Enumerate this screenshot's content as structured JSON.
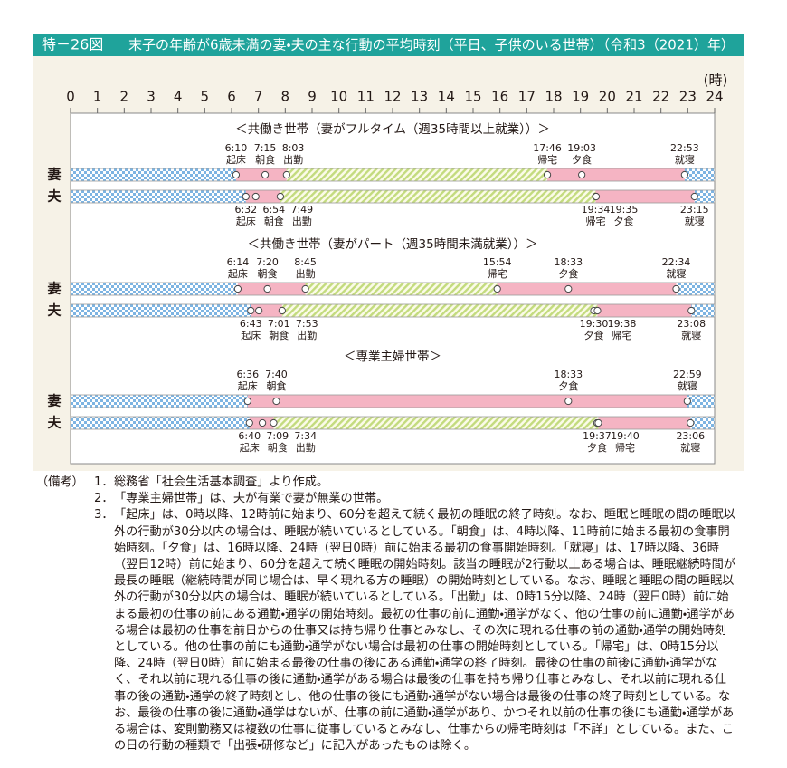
{
  "chart_data": {
    "type": "timeline",
    "figure_number": "特－26図",
    "title": "末子の年齢が6歳未満の妻・夫の主な行動の平均時刻（平日、子供のいる世帯）（令和3（2021）年）",
    "x_label": "(時)",
    "xlim": [
      0,
      24
    ],
    "xticks": [
      0,
      1,
      2,
      3,
      4,
      5,
      6,
      7,
      8,
      9,
      10,
      11,
      12,
      13,
      14,
      15,
      16,
      17,
      18,
      19,
      20,
      21,
      22,
      23,
      24
    ],
    "colors": {
      "sleep": "#7db4e2",
      "awake": "#f5b4c3",
      "work": "#c3db7e"
    },
    "groups": [
      {
        "title": "＜共働き世帯（妻がフルタイム（週35時間以上就業））＞",
        "rows": [
          {
            "name": "妻",
            "events": {
              "wake": {
                "name": "起床",
                "value": 6.1667,
                "label": "6:10"
              },
              "breakfast": {
                "name": "朝食",
                "value": 7.25,
                "label": "7:15"
              },
              "leave": {
                "name": "出勤",
                "value": 8.05,
                "label": "8:03"
              },
              "return": {
                "name": "帰宅",
                "value": 17.7667,
                "label": "17:46"
              },
              "dinner": {
                "name": "夕食",
                "value": 19.05,
                "label": "19:03"
              },
              "sleep": {
                "name": "就寝",
                "value": 22.8833,
                "label": "22:53"
              }
            }
          },
          {
            "name": "夫",
            "events": {
              "wake": {
                "name": "起床",
                "value": 6.5333,
                "label": "6:32"
              },
              "breakfast": {
                "name": "朝食",
                "value": 6.9,
                "label": "6:54"
              },
              "leave": {
                "name": "出勤",
                "value": 7.8167,
                "label": "7:49"
              },
              "return": {
                "name": "帰宅",
                "value": 19.5667,
                "label": "19:34"
              },
              "dinner": {
                "name": "夕食",
                "value": 19.5833,
                "label": "19:35"
              },
              "sleep": {
                "name": "就寝",
                "value": 23.25,
                "label": "23:15"
              }
            }
          }
        ]
      },
      {
        "title": "＜共働き世帯（妻がパート（週35時間未満就業））＞",
        "rows": [
          {
            "name": "妻",
            "events": {
              "wake": {
                "name": "起床",
                "value": 6.2333,
                "label": "6:14"
              },
              "breakfast": {
                "name": "朝食",
                "value": 7.3333,
                "label": "7:20"
              },
              "leave": {
                "name": "出勤",
                "value": 8.75,
                "label": "8:45"
              },
              "return": {
                "name": "帰宅",
                "value": 15.9,
                "label": "15:54"
              },
              "dinner": {
                "name": "夕食",
                "value": 18.55,
                "label": "18:33"
              },
              "sleep": {
                "name": "就寝",
                "value": 22.5667,
                "label": "22:34"
              }
            }
          },
          {
            "name": "夫",
            "events": {
              "wake": {
                "name": "起床",
                "value": 6.7167,
                "label": "6:43"
              },
              "breakfast": {
                "name": "朝食",
                "value": 7.0167,
                "label": "7:01"
              },
              "leave": {
                "name": "出勤",
                "value": 7.8833,
                "label": "7:53"
              },
              "dinner": {
                "name": "夕食",
                "value": 19.5,
                "label": "19:30"
              },
              "return": {
                "name": "帰宅",
                "value": 19.6333,
                "label": "19:38"
              },
              "sleep": {
                "name": "就寝",
                "value": 23.1333,
                "label": "23:08"
              }
            }
          }
        ]
      },
      {
        "title": "＜専業主婦世帯＞",
        "rows": [
          {
            "name": "妻",
            "events": {
              "wake": {
                "name": "起床",
                "value": 6.6,
                "label": "6:36"
              },
              "breakfast": {
                "name": "朝食",
                "value": 7.6667,
                "label": "7:40"
              },
              "dinner": {
                "name": "夕食",
                "value": 18.55,
                "label": "18:33"
              },
              "sleep": {
                "name": "就寝",
                "value": 22.9833,
                "label": "22:59"
              }
            }
          },
          {
            "name": "夫",
            "events": {
              "wake": {
                "name": "起床",
                "value": 6.6667,
                "label": "6:40"
              },
              "breakfast": {
                "name": "朝食",
                "value": 7.15,
                "label": "7:09"
              },
              "leave": {
                "name": "出勤",
                "value": 7.5667,
                "label": "7:34"
              },
              "dinner": {
                "name": "夕食",
                "value": 19.6167,
                "label": "19:37"
              },
              "return": {
                "name": "帰宅",
                "value": 19.6667,
                "label": "19:40"
              },
              "sleep": {
                "name": "就寝",
                "value": 23.1,
                "label": "23:06"
              }
            }
          }
        ]
      }
    ],
    "notes": {
      "heading": "（備考）",
      "items": [
        {
          "number": "1．",
          "text": "総務省「社会生活基本調査」より作成。"
        },
        {
          "number": "2．",
          "text": "「専業主婦世帯」は、夫が有業で妻が無業の世帯。"
        },
        {
          "number": "3．",
          "text": "「起床」は、0時以降、12時前に始まり、60分を超えて続く最初の睡眠の終了時刻。なお、睡眠と睡眠の間の睡眠以外の行動が30分以内の場合は、睡眠が続いているとしている。「朝食」は、4時以降、11時前に始まる最初の食事開始時刻。「夕食」は、16時以降、24時（翌日0時）前に始まる最初の食事開始時刻。「就寝」は、17時以降、36時（翌日12時）前に始まり、60分を超えて続く睡眠の開始時刻。該当の睡眠が2行動以上ある場合は、睡眠継続時間が最長の睡眠（継続時間が同じ場合は、早く現れる方の睡眠）の開始時刻としている。なお、睡眠と睡眠の間の睡眠以外の行動が30分以内の場合は、睡眠が続いているとしている。「出勤」は、0時15分以降、24時（翌日0時）前に始まる最初の仕事の前にある通勤・通学の開始時刻。最初の仕事の前に通勤・通学がなく、他の仕事の前に通勤・通学がある場合は最初の仕事を前日からの仕事又は持ち帰り仕事とみなし、その次に現れる仕事の前の通勤・通学の開始時刻としている。他の仕事の前にも通勤・通学がない場合は最初の仕事の開始時刻としている。「帰宅」は、0時15分以降、24時（翌日0時）前に始まる最後の仕事の後にある通勤・通学の終了時刻。最後の仕事の前後に通勤・通学がなく、それ以前に現れる仕事の後に通勤・通学がある場合は最後の仕事を持ち帰り仕事とみなし、それ以前に現れる仕事の後の通勤・通学の終了時刻とし、他の仕事の後にも通勤・通学がない場合は最後の仕事の終了時刻としている。なお、最後の仕事の後に通勤・通学はないが、仕事の前に通勤・通学があり、かつそれ以前の仕事の後にも通勤・通学がある場合は、変則勤務又は複数の仕事に従事しているとみなし、仕事からの帰宅時刻は「不詳」としている。また、この日の行動の種類で「出張・研修など」に記入があったものは除く。"
        }
      ]
    }
  }
}
